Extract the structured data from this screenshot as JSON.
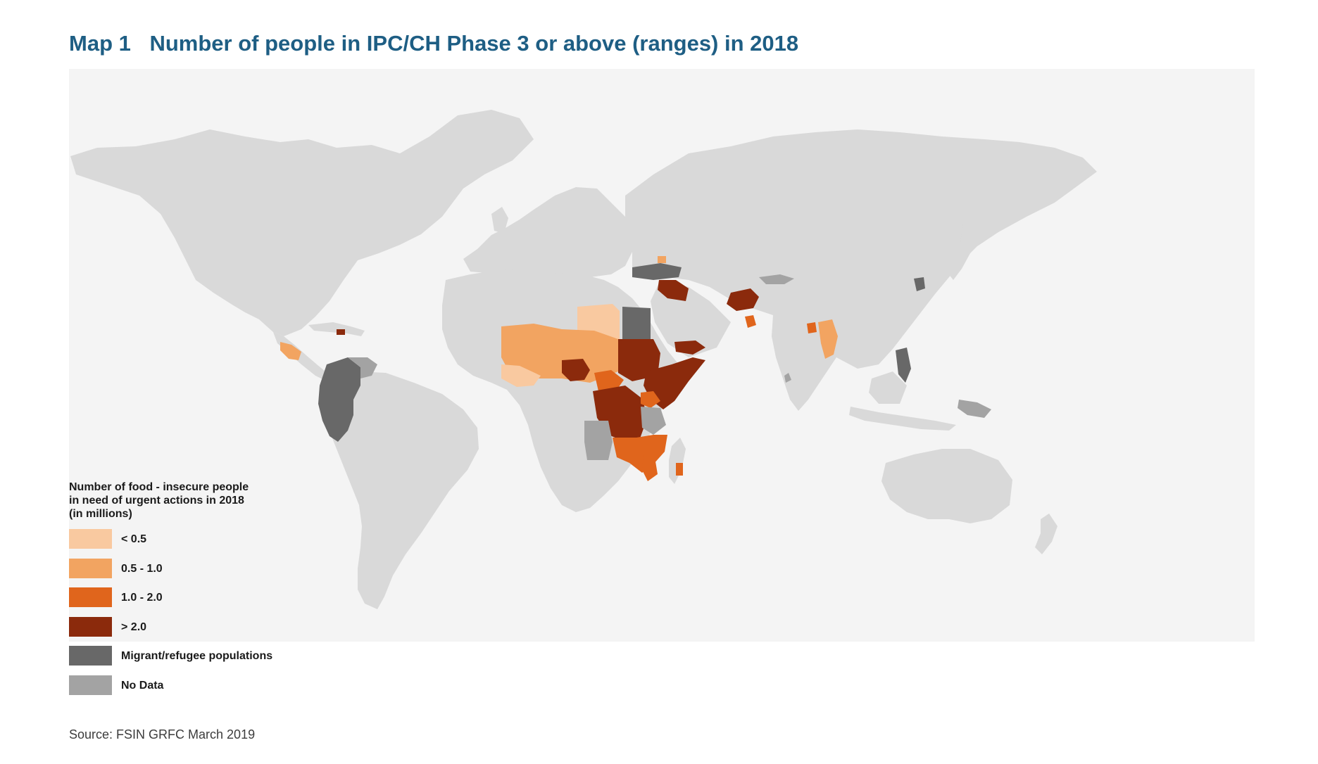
{
  "title": {
    "label": "Map 1",
    "text": "Number of people in IPC/CH Phase 3 or above (ranges) in 2018"
  },
  "legend": {
    "title_lines": [
      "Number of food - insecure people",
      "in need of urgent actions in 2018",
      "(in millions)"
    ],
    "items": [
      {
        "label": "< 0.5",
        "color": "#f9c9a0"
      },
      {
        "label": "0.5 - 1.0",
        "color": "#f2a461"
      },
      {
        "label": "1.0 - 2.0",
        "color": "#e0651c"
      },
      {
        "label": "> 2.0",
        "color": "#8b2a0c"
      },
      {
        "label": "Migrant/refugee populations",
        "color": "#686868"
      },
      {
        "label": "No Data",
        "color": "#a3a3a3"
      }
    ]
  },
  "colors": {
    "land": "#d9d9d9",
    "ocean": "#f4f4f4",
    "title": "#1e5e84"
  },
  "source": "Source: FSIN GRFC March 2019"
}
